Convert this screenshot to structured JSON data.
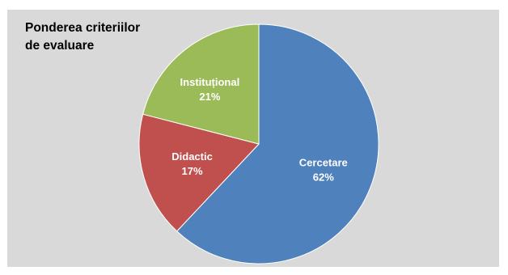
{
  "chart_data": {
    "type": "pie",
    "title": "Ponderea criteriilor\nde evaluare",
    "categories": [
      "Cercetare",
      "Didactic",
      "Instituțional"
    ],
    "values": [
      62,
      17,
      21
    ],
    "value_labels": [
      "62%",
      "17%",
      "21%"
    ],
    "colors": [
      "#4f81bd",
      "#c0504d",
      "#9bbb59"
    ],
    "legend": "none",
    "start": "top, clockwise"
  }
}
